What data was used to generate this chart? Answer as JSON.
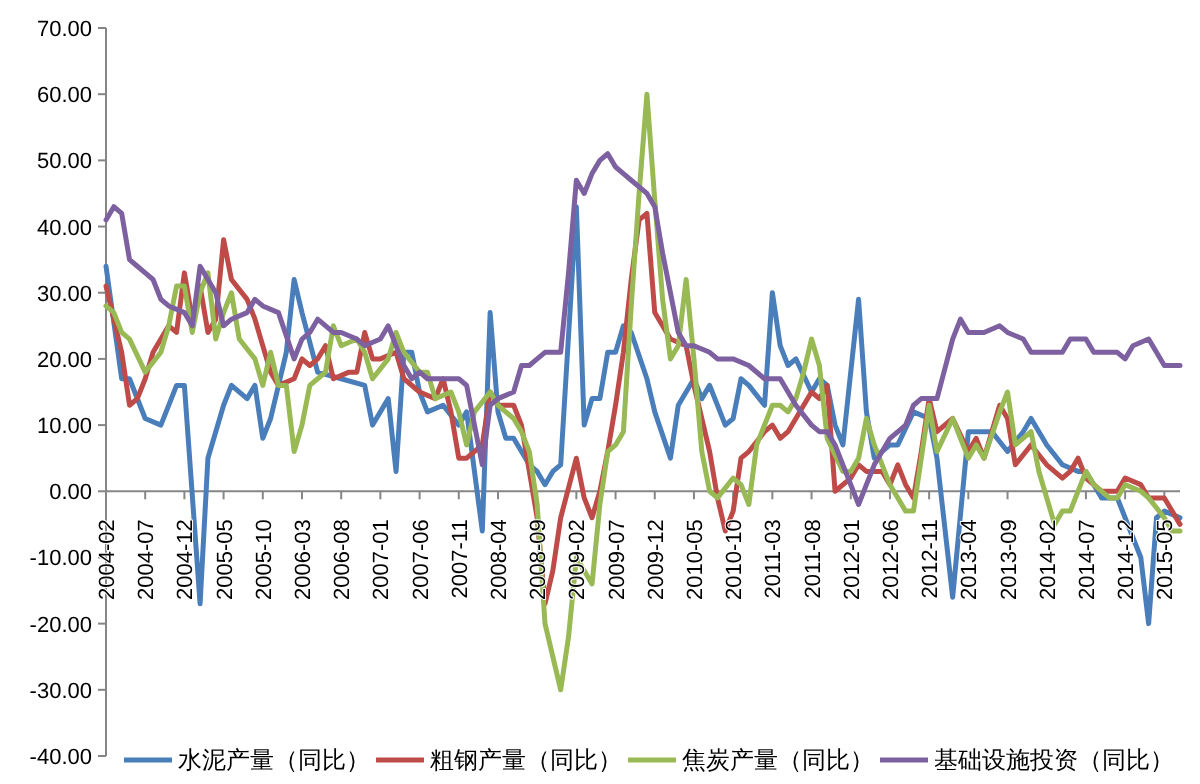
{
  "chart_data": {
    "type": "line",
    "legend": "bottom",
    "xlim": [
      "2004-02",
      "2015-07"
    ],
    "xticks": [
      {
        "value": "2004-02",
        "label": "2004-02"
      },
      {
        "value": "2004-07",
        "label": "2004-07"
      },
      {
        "value": "2004-12",
        "label": "2004-12"
      },
      {
        "value": "2005-05",
        "label": "2005-05"
      },
      {
        "value": "2005-10",
        "label": "2005-10"
      },
      {
        "value": "2006-03",
        "label": "2006-03"
      },
      {
        "value": "2006-08",
        "label": "2006-08"
      },
      {
        "value": "2007-01",
        "label": "2007-01"
      },
      {
        "value": "2007-06",
        "label": "2007-06"
      },
      {
        "value": "2007-11",
        "label": "2007-11"
      },
      {
        "value": "2008-04",
        "label": "2008-04"
      },
      {
        "value": "2008-09",
        "label": "2008-09"
      },
      {
        "value": "2009-02",
        "label": "2009-02"
      },
      {
        "value": "2009-07",
        "label": "2009-07"
      },
      {
        "value": "2009-12",
        "label": "2009-12"
      },
      {
        "value": "2010-05",
        "label": "2010-05"
      },
      {
        "value": "2010-10",
        "label": "2010-10"
      },
      {
        "value": "2011-03",
        "label": "2011-03"
      },
      {
        "value": "2011-08",
        "label": "2011-08"
      },
      {
        "value": "2012-01",
        "label": "2012-01"
      },
      {
        "value": "2012-06",
        "label": "2012-06"
      },
      {
        "value": "2012-11",
        "label": "2012-11"
      },
      {
        "value": "2013-04",
        "label": "2013-04"
      },
      {
        "value": "2013-09",
        "label": "2013-09"
      },
      {
        "value": "2014-02",
        "label": "2014-02"
      },
      {
        "value": "2014-07",
        "label": "2014-07"
      },
      {
        "value": "2014-12",
        "label": "2014-12"
      },
      {
        "value": "2015-05",
        "label": "2015-05"
      }
    ],
    "ylim": [
      -40,
      70
    ],
    "yticks": [
      {
        "value": -40,
        "label": "-40.00"
      },
      {
        "value": -30,
        "label": "-30.00"
      },
      {
        "value": -20,
        "label": "-20.00"
      },
      {
        "value": -10,
        "label": "-10.00"
      },
      {
        "value": 0,
        "label": "0.00"
      },
      {
        "value": 10,
        "label": "10.00"
      },
      {
        "value": 20,
        "label": "20.00"
      },
      {
        "value": 30,
        "label": "30.00"
      },
      {
        "value": 40,
        "label": "40.00"
      },
      {
        "value": 50,
        "label": "50.00"
      },
      {
        "value": 60,
        "label": "60.00"
      },
      {
        "value": 70,
        "label": "70.00"
      }
    ],
    "series": [
      {
        "name": "水泥产量（同比）",
        "color": "#4a7ebb",
        "x": [
          "2004-02",
          "2004-04",
          "2004-05",
          "2004-07",
          "2004-09",
          "2004-11",
          "2004-12",
          "2005-02",
          "2005-03",
          "2005-05",
          "2005-06",
          "2005-08",
          "2005-09",
          "2005-10",
          "2005-11",
          "2006-01",
          "2006-02",
          "2006-03",
          "2006-05",
          "2006-08",
          "2006-11",
          "2006-12",
          "2007-02",
          "2007-03",
          "2007-04",
          "2007-05",
          "2007-06",
          "2007-07",
          "2007-09",
          "2007-11",
          "2007-12",
          "2008-02",
          "2008-03",
          "2008-04",
          "2008-05",
          "2008-06",
          "2008-08",
          "2008-09",
          "2008-10",
          "2008-11",
          "2008-12",
          "2009-02",
          "2009-03",
          "2009-04",
          "2009-05",
          "2009-06",
          "2009-07",
          "2009-08",
          "2009-09",
          "2009-11",
          "2009-12",
          "2010-02",
          "2010-03",
          "2010-05",
          "2010-06",
          "2010-07",
          "2010-09",
          "2010-10",
          "2010-11",
          "2010-12",
          "2011-02",
          "2011-03",
          "2011-04",
          "2011-05",
          "2011-06",
          "2011-08",
          "2011-09",
          "2011-10",
          "2011-11",
          "2011-12",
          "2012-02",
          "2012-03",
          "2012-04",
          "2012-06",
          "2012-07",
          "2012-09",
          "2012-11",
          "2012-12",
          "2013-02",
          "2013-04",
          "2013-05",
          "2013-07",
          "2013-09",
          "2013-11",
          "2013-12",
          "2014-02",
          "2014-04",
          "2014-06",
          "2014-07",
          "2014-09",
          "2014-11",
          "2014-12",
          "2015-02",
          "2015-03",
          "2015-04",
          "2015-05",
          "2015-07"
        ],
        "values": [
          34,
          17,
          17,
          11,
          10,
          16,
          16,
          -17,
          5,
          13,
          16,
          14,
          16,
          8,
          11,
          21,
          32,
          27,
          18,
          17,
          16,
          10,
          14,
          3,
          21,
          21,
          15,
          12,
          13,
          10,
          12,
          -6,
          27,
          12,
          8,
          8,
          4,
          3,
          1,
          3,
          4,
          43,
          10,
          14,
          14,
          21,
          21,
          25,
          24,
          17,
          12,
          5,
          13,
          17,
          14,
          16,
          10,
          11,
          17,
          16,
          13,
          30,
          22,
          19,
          20,
          15,
          17,
          16,
          10,
          7,
          29,
          12,
          5,
          7,
          7,
          12,
          11,
          5,
          -16,
          9,
          9,
          9,
          6,
          9,
          11,
          7,
          4,
          3,
          3,
          -1,
          -1,
          -4,
          -10,
          -20,
          -4,
          -3,
          -4
        ]
      },
      {
        "name": "粗钢产量（同比）",
        "color": "#be4b48",
        "x": [
          "2004-02",
          "2004-03",
          "2004-04",
          "2004-05",
          "2004-06",
          "2004-07",
          "2004-08",
          "2004-09",
          "2004-10",
          "2004-11",
          "2004-12",
          "2005-01",
          "2005-02",
          "2005-03",
          "2005-04",
          "2005-05",
          "2005-06",
          "2005-08",
          "2005-09",
          "2005-10",
          "2005-11",
          "2005-12",
          "2006-02",
          "2006-03",
          "2006-04",
          "2006-05",
          "2006-06",
          "2006-07",
          "2006-09",
          "2006-10",
          "2006-11",
          "2006-12",
          "2007-01",
          "2007-03",
          "2007-04",
          "2007-06",
          "2007-08",
          "2007-09",
          "2007-10",
          "2007-11",
          "2007-12",
          "2008-02",
          "2008-03",
          "2008-04",
          "2008-06",
          "2008-07",
          "2008-08",
          "2008-09",
          "2008-10",
          "2008-11",
          "2008-12",
          "2009-02",
          "2009-03",
          "2009-04",
          "2009-05",
          "2009-06",
          "2009-07",
          "2009-08",
          "2009-09",
          "2009-10",
          "2009-11",
          "2009-12",
          "2010-02",
          "2010-04",
          "2010-05",
          "2010-07",
          "2010-08",
          "2010-09",
          "2010-10",
          "2010-11",
          "2010-12",
          "2011-02",
          "2011-03",
          "2011-04",
          "2011-05",
          "2011-07",
          "2011-08",
          "2011-09",
          "2011-10",
          "2011-11",
          "2012-01",
          "2012-02",
          "2012-03",
          "2012-05",
          "2012-06",
          "2012-07",
          "2012-08",
          "2012-09",
          "2012-10",
          "2012-11",
          "2012-12",
          "2013-02",
          "2013-04",
          "2013-05",
          "2013-06",
          "2013-08",
          "2013-09",
          "2013-10",
          "2013-12",
          "2014-02",
          "2014-04",
          "2014-05",
          "2014-06",
          "2014-07",
          "2014-09",
          "2014-11",
          "2014-12",
          "2015-02",
          "2015-03",
          "2015-05",
          "2015-07"
        ],
        "values": [
          31,
          26,
          21,
          13,
          14,
          17,
          21,
          23,
          25,
          24,
          33,
          26,
          31,
          24,
          26,
          38,
          32,
          29,
          26,
          22,
          18,
          16,
          17,
          20,
          19,
          20,
          22,
          17,
          18,
          18,
          24,
          20,
          20,
          21,
          17,
          15,
          14,
          17,
          12,
          5,
          5,
          7,
          15,
          13,
          13,
          10,
          3,
          -4,
          -17,
          -12,
          -4,
          5,
          -1,
          -4,
          0,
          6,
          13,
          21,
          32,
          41,
          42,
          27,
          23,
          22,
          16,
          6,
          -1,
          -6,
          -3,
          5,
          6,
          9,
          10,
          8,
          9,
          13,
          15,
          14,
          16,
          0,
          2,
          4,
          3,
          3,
          1,
          4,
          1,
          -1,
          6,
          14,
          9,
          11,
          6,
          8,
          5,
          13,
          11,
          4,
          7,
          4,
          2,
          3,
          5,
          2,
          0,
          0,
          2,
          1,
          -1,
          -1,
          -5
        ]
      },
      {
        "name": "焦炭产量（同比）",
        "color": "#98b954",
        "x": [
          "2004-02",
          "2004-03",
          "2004-04",
          "2004-05",
          "2004-07",
          "2004-09",
          "2004-10",
          "2004-11",
          "2004-12",
          "2005-01",
          "2005-02",
          "2005-03",
          "2005-04",
          "2005-05",
          "2005-06",
          "2005-07",
          "2005-09",
          "2005-10",
          "2005-11",
          "2005-12",
          "2006-01",
          "2006-02",
          "2006-03",
          "2006-04",
          "2006-05",
          "2006-06",
          "2006-07",
          "2006-08",
          "2006-10",
          "2006-11",
          "2006-12",
          "2007-02",
          "2007-03",
          "2007-04",
          "2007-06",
          "2007-07",
          "2007-08",
          "2007-10",
          "2007-11",
          "2007-12",
          "2008-01",
          "2008-03",
          "2008-04",
          "2008-06",
          "2008-07",
          "2008-08",
          "2008-09",
          "2008-10",
          "2008-12",
          "2009-01",
          "2009-02",
          "2009-04",
          "2009-05",
          "2009-06",
          "2009-07",
          "2009-08",
          "2009-09",
          "2009-10",
          "2009-11",
          "2009-12",
          "2010-01",
          "2010-02",
          "2010-03",
          "2010-04",
          "2010-05",
          "2010-06",
          "2010-07",
          "2010-08",
          "2010-10",
          "2010-11",
          "2010-12",
          "2011-01",
          "2011-03",
          "2011-04",
          "2011-05",
          "2011-06",
          "2011-07",
          "2011-08",
          "2011-09",
          "2011-10",
          "2011-12",
          "2012-01",
          "2012-02",
          "2012-03",
          "2012-04",
          "2012-06",
          "2012-08",
          "2012-09",
          "2012-10",
          "2012-11",
          "2012-12",
          "2013-02",
          "2013-04",
          "2013-05",
          "2013-06",
          "2013-08",
          "2013-09",
          "2013-10",
          "2013-12",
          "2014-01",
          "2014-03",
          "2014-04",
          "2014-05",
          "2014-07",
          "2014-08",
          "2014-10",
          "2014-11",
          "2014-12",
          "2015-02",
          "2015-03",
          "2015-05",
          "2015-06",
          "2015-07"
        ],
        "values": [
          28,
          27,
          24,
          23,
          18,
          21,
          25,
          31,
          31,
          24,
          30,
          33,
          23,
          27,
          30,
          23,
          20,
          16,
          21,
          16,
          16,
          6,
          10,
          16,
          17,
          18,
          25,
          22,
          23,
          21,
          17,
          20,
          24,
          21,
          18,
          18,
          14,
          15,
          12,
          7,
          12,
          15,
          13,
          11,
          9,
          6,
          -2,
          -20,
          -30,
          -22,
          -10,
          -14,
          -2,
          6,
          7,
          9,
          28,
          45,
          60,
          44,
          29,
          20,
          22,
          32,
          20,
          6,
          0,
          -1,
          2,
          1,
          -2,
          7,
          13,
          13,
          12,
          14,
          18,
          23,
          19,
          8,
          3,
          3,
          5,
          11,
          7,
          1,
          -3,
          -3,
          5,
          13,
          6,
          11,
          5,
          7,
          5,
          12,
          15,
          7,
          9,
          3,
          -5,
          -3,
          -3,
          3,
          1,
          -1,
          -1,
          1,
          0,
          -1,
          -4,
          -6,
          -6
        ]
      },
      {
        "name": "基础设施投资（同比）",
        "color": "#7d60a0",
        "x": [
          "2004-02",
          "2004-03",
          "2004-04",
          "2004-05",
          "2004-06",
          "2004-07",
          "2004-08",
          "2004-09",
          "2004-10",
          "2004-12",
          "2005-01",
          "2005-02",
          "2005-04",
          "2005-05",
          "2005-06",
          "2005-08",
          "2005-09",
          "2005-10",
          "2005-12",
          "2006-02",
          "2006-03",
          "2006-04",
          "2006-05",
          "2006-07",
          "2006-08",
          "2006-10",
          "2006-11",
          "2007-01",
          "2007-02",
          "2007-04",
          "2007-05",
          "2007-06",
          "2007-07",
          "2007-09",
          "2007-11",
          "2007-12",
          "2008-01",
          "2008-02",
          "2008-03",
          "2008-04",
          "2008-06",
          "2008-07",
          "2008-08",
          "2008-09",
          "2008-10",
          "2008-12",
          "2009-01",
          "2009-02",
          "2009-03",
          "2009-04",
          "2009-05",
          "2009-06",
          "2009-07",
          "2009-08",
          "2009-09",
          "2009-11",
          "2009-12",
          "2010-01",
          "2010-02",
          "2010-03",
          "2010-04",
          "2010-05",
          "2010-07",
          "2010-08",
          "2010-10",
          "2010-12",
          "2011-02",
          "2011-04",
          "2011-05",
          "2011-06",
          "2011-08",
          "2011-09",
          "2011-10",
          "2011-11",
          "2011-12",
          "2012-02",
          "2012-03",
          "2012-04",
          "2012-05",
          "2012-06",
          "2012-08",
          "2012-09",
          "2012-10",
          "2012-11",
          "2012-12",
          "2013-02",
          "2013-03",
          "2013-04",
          "2013-05",
          "2013-06",
          "2013-08",
          "2013-09",
          "2013-11",
          "2013-12",
          "2014-02",
          "2014-04",
          "2014-05",
          "2014-07",
          "2014-08",
          "2014-10",
          "2014-11",
          "2014-12",
          "2015-01",
          "2015-03",
          "2015-05",
          "2015-06",
          "2015-07"
        ],
        "values": [
          41,
          43,
          42,
          35,
          34,
          33,
          32,
          29,
          28,
          27,
          25,
          34,
          30,
          25,
          26,
          27,
          29,
          28,
          27,
          20,
          23,
          24,
          26,
          24,
          24,
          23,
          22,
          23,
          25,
          19,
          17,
          18,
          17,
          17,
          17,
          16,
          10,
          4,
          13,
          14,
          15,
          19,
          19,
          20,
          21,
          21,
          33,
          47,
          45,
          48,
          50,
          51,
          49,
          48,
          47,
          45,
          43,
          36,
          30,
          24,
          22,
          22,
          21,
          20,
          20,
          19,
          17,
          17,
          15,
          13,
          10,
          9,
          9,
          7,
          4,
          -2,
          1,
          4,
          6,
          8,
          10,
          13,
          14,
          14,
          14,
          23,
          26,
          24,
          24,
          24,
          25,
          24,
          23,
          21,
          21,
          21,
          23,
          23,
          21,
          21,
          21,
          20,
          22,
          23,
          19,
          19,
          19
        ]
      }
    ]
  }
}
